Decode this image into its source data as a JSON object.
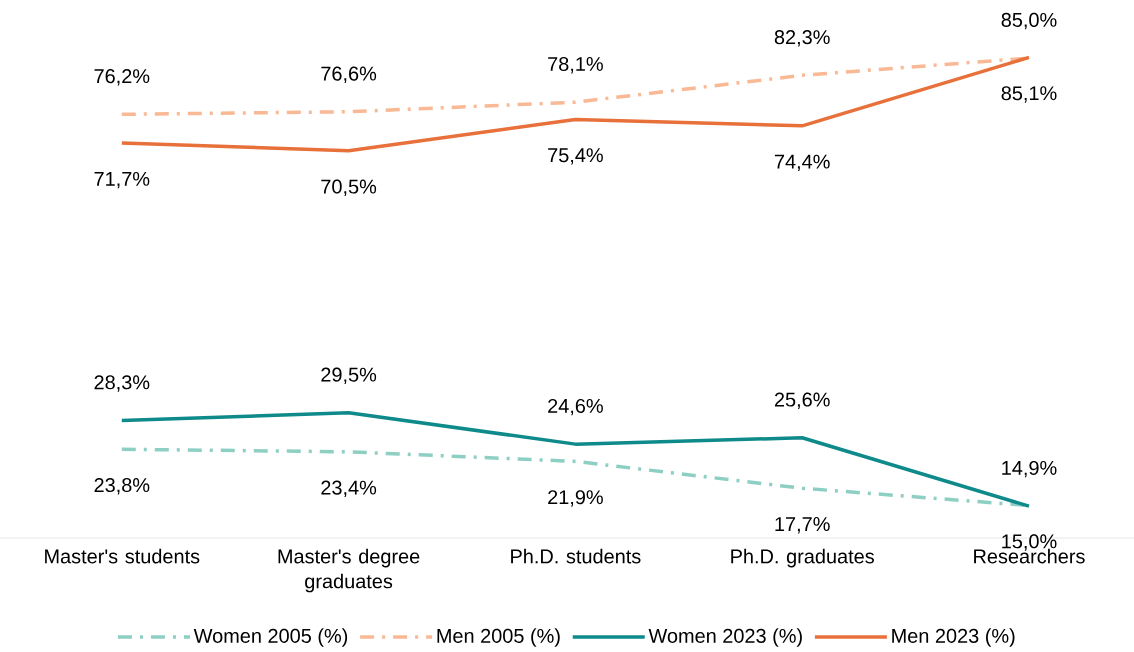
{
  "chart_data": {
    "type": "line",
    "categories": [
      "Master's students",
      "Master's degree graduates",
      "Ph.D. students",
      "Ph.D. graduates",
      "Researchers"
    ],
    "tick_labels": "x",
    "legend": "bottom",
    "marker": "none",
    "series": [
      {
        "name": "Women 2005 (%)",
        "color": "#8ecfc4",
        "line_style": "dashed",
        "values": [
          23.8,
          23.4,
          21.9,
          17.7,
          15.0
        ],
        "value_labels": [
          "23,8%",
          "23,4%",
          "21,9%",
          "17,7%",
          "15,0%"
        ]
      },
      {
        "name": "Men 2005 (%)",
        "color": "#f8b994",
        "line_style": "dashed",
        "values": [
          76.2,
          76.6,
          78.1,
          82.3,
          85.0
        ],
        "value_labels": [
          "76,2%",
          "76,6%",
          "78,1%",
          "82,3%",
          "85,0%"
        ]
      },
      {
        "name": "Women 2023 (%)",
        "color": "#0e8a8a",
        "line_style": "solid",
        "values": [
          28.3,
          29.5,
          24.6,
          25.6,
          14.9
        ],
        "value_labels": [
          "28,3%",
          "29,5%",
          "24,6%",
          "25,6%",
          "14,9%"
        ]
      },
      {
        "name": "Men 2023 (%)",
        "color": "#e8703a",
        "line_style": "solid",
        "values": [
          71.7,
          70.5,
          75.4,
          74.4,
          85.1
        ],
        "value_labels": [
          "71,7%",
          "70,5%",
          "75,4%",
          "74,4%",
          "85,1%"
        ]
      }
    ]
  }
}
